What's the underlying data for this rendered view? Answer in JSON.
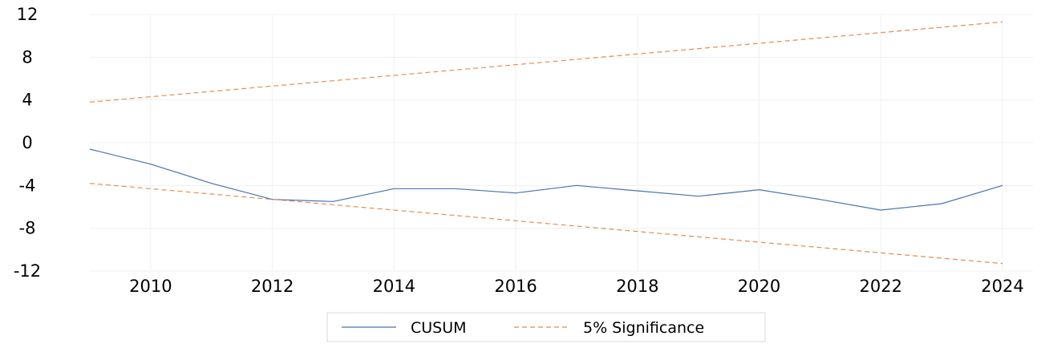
{
  "chart_data": {
    "type": "line",
    "title": "",
    "xlabel": "",
    "ylabel": "",
    "x": [
      2009,
      2010,
      2011,
      2012,
      2013,
      2014,
      2015,
      2016,
      2017,
      2018,
      2019,
      2020,
      2021,
      2022,
      2023,
      2024
    ],
    "xlim": [
      2009,
      2024
    ],
    "ylim": [
      -12,
      12
    ],
    "x_ticks": [
      2010,
      2012,
      2014,
      2016,
      2018,
      2020,
      2022,
      2024
    ],
    "y_ticks": [
      12,
      8,
      4,
      0,
      -4,
      -8,
      -12
    ],
    "x_tick_labels": [
      "2010",
      "2012",
      "2014",
      "2016",
      "2018",
      "2020",
      "2022",
      "2024"
    ],
    "y_tick_labels": [
      "12",
      "8",
      "4",
      "0",
      "-4",
      "-8",
      "-12"
    ],
    "grid": true,
    "legend_position": "bottom-center",
    "series": [
      {
        "name": "CUSUM",
        "color": "#4a72b0",
        "style": "solid",
        "values": [
          -0.6,
          -2.0,
          -3.8,
          -5.3,
          -5.5,
          -4.3,
          -4.3,
          -4.7,
          -4.0,
          -4.5,
          -5.0,
          -4.4,
          -5.3,
          -6.3,
          -5.7,
          -4.0
        ]
      },
      {
        "name": "5% Significance",
        "color": "#e5894a",
        "style": "dashed",
        "values": [
          3.8,
          4.3,
          4.8,
          5.3,
          5.8,
          6.3,
          6.8,
          7.3,
          7.8,
          8.3,
          8.8,
          9.3,
          9.8,
          10.3,
          10.8,
          11.3
        ]
      },
      {
        "name": "",
        "color": "#e5894a",
        "style": "dashed",
        "values": [
          -3.8,
          -4.3,
          -4.8,
          -5.3,
          -5.8,
          -6.3,
          -6.8,
          -7.3,
          -7.8,
          -8.3,
          -8.8,
          -9.3,
          -9.8,
          -10.3,
          -10.8,
          -11.3
        ]
      }
    ],
    "legend": [
      "CUSUM",
      "5% Significance"
    ]
  }
}
